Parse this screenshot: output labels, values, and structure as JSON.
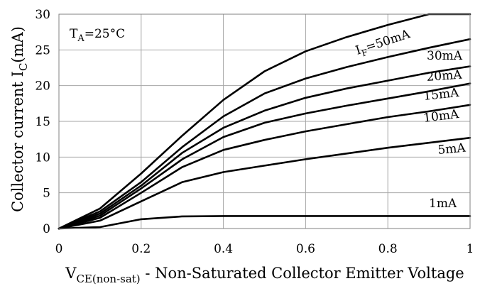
{
  "chart_data": {
    "type": "line",
    "title": "",
    "xlabel": {
      "main": "V",
      "sub": "CE(non-sat)",
      "rest": " - Non-Saturated Collector Emitter Voltage"
    },
    "ylabel": {
      "main": "Collector current I",
      "sub": "C",
      "rest": "(mA)"
    },
    "xlim": [
      0,
      1
    ],
    "ylim": [
      0,
      30
    ],
    "xticks": [
      0,
      0.2,
      0.4,
      0.6,
      0.8,
      1
    ],
    "xtick_labels": [
      "0",
      "0.2",
      "0.4",
      "0.6",
      "0.8",
      "1"
    ],
    "yticks": [
      0,
      5,
      10,
      15,
      20,
      25,
      30
    ],
    "ytick_labels": [
      "0",
      "5",
      "10",
      "15",
      "20",
      "25",
      "30"
    ],
    "grid": true,
    "annotation": {
      "main": "T",
      "sub": "A",
      "rest": "=25°C"
    },
    "x": [
      0,
      0.1,
      0.2,
      0.3,
      0.4,
      0.5,
      0.6,
      0.7,
      0.8,
      0.9,
      1.0
    ],
    "series": [
      {
        "name": "50mA",
        "label_prefix": "I",
        "label_sub": "F",
        "label_rest": "=50mA",
        "values": [
          0,
          2.8,
          7.7,
          13.0,
          18.0,
          22.0,
          24.8,
          26.8,
          28.5,
          30.0,
          30.0
        ]
      },
      {
        "name": "30mA",
        "values": [
          0,
          2.4,
          6.5,
          11.4,
          15.7,
          18.9,
          21.0,
          22.6,
          24.0,
          25.3,
          26.5
        ]
      },
      {
        "name": "20mA",
        "values": [
          0,
          2.1,
          6.0,
          10.6,
          14.1,
          16.5,
          18.3,
          19.6,
          20.7,
          21.8,
          22.7
        ]
      },
      {
        "name": "15mA",
        "values": [
          0,
          1.8,
          5.6,
          9.7,
          12.8,
          14.8,
          16.1,
          17.2,
          18.2,
          19.2,
          20.3
        ]
      },
      {
        "name": "10mA",
        "values": [
          0,
          1.5,
          5.0,
          8.6,
          11.0,
          12.4,
          13.6,
          14.6,
          15.6,
          16.4,
          17.3
        ]
      },
      {
        "name": "5mA",
        "values": [
          0,
          1.1,
          3.8,
          6.5,
          7.9,
          8.8,
          9.7,
          10.5,
          11.3,
          12.0,
          12.7
        ]
      },
      {
        "name": "1mA",
        "values": [
          0,
          0.2,
          1.3,
          1.7,
          1.75,
          1.75,
          1.75,
          1.75,
          1.75,
          1.75,
          1.75
        ]
      }
    ]
  }
}
